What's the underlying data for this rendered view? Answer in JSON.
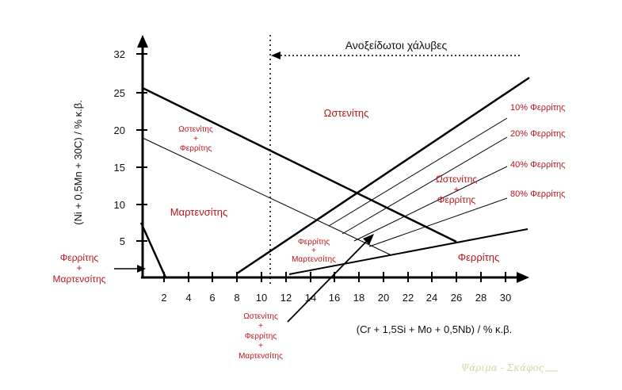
{
  "diagram": {
    "x_ticks": [
      "2",
      "4",
      "6",
      "8",
      "10",
      "12",
      "14",
      "16",
      "18",
      "20",
      "22",
      "24",
      "26",
      "28",
      "30"
    ],
    "y_ticks": [
      "5",
      "10",
      "15",
      "20",
      "25",
      "32"
    ],
    "x_axis_title": "(Cr + 1,5Si + Mo + 0,5Nb)  / % κ.β.",
    "y_axis_title": "(Ni + 0,5Mn + 30C)  / % κ.β.",
    "stainless_label": "Ανοξείδωτοι χάλυβες",
    "regions": {
      "austenite": "Ωστενίτης",
      "austenite_ferrite_left": [
        "Ωστενίτης",
        "+",
        "Φερρίτης"
      ],
      "martensite": "Μαρτενσίτης",
      "austenite_ferrite_right": [
        "Ωστενίτης",
        "+",
        "Φερρίτης"
      ],
      "ferrite_martensite_inner": [
        "Φερρίτης",
        "+",
        "Μαρτενσίτης"
      ],
      "ferrite": "Φερρίτης",
      "ferrite_martensite_outer": [
        "Φερρίτης",
        "+",
        "Μαρτενσίτης"
      ],
      "triple": [
        "Ωστενίτης",
        "+",
        "Φερρίτης",
        "+",
        "Μαρτενσίτης"
      ]
    },
    "ferrite_pct": [
      "10% Φερρίτης",
      "20% Φερρίτης",
      "40% Φερρίτης",
      "80% Φερρίτης"
    ],
    "signature": "Ψάριμα - Σκάφος"
  }
}
